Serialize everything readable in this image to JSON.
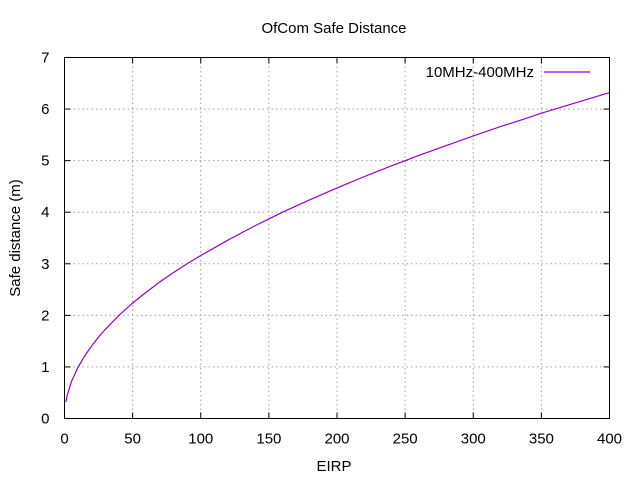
{
  "chart_data": {
    "type": "line",
    "title": "OfCom Safe Distance",
    "xlabel": "EIRP",
    "ylabel": "Safe distance (m)",
    "xlim": [
      0,
      400
    ],
    "ylim": [
      0,
      7
    ],
    "xticks": [
      0,
      50,
      100,
      150,
      200,
      250,
      300,
      350,
      400
    ],
    "yticks": [
      0,
      1,
      2,
      3,
      4,
      5,
      6,
      7
    ],
    "grid": true,
    "legend_position": "top-right",
    "series": [
      {
        "name": "10MHz-400MHz",
        "color": "#9400d3",
        "x": [
          1,
          2,
          5,
          10,
          15,
          20,
          25,
          30,
          40,
          50,
          60,
          70,
          80,
          90,
          100,
          120,
          140,
          150,
          160,
          180,
          200,
          220,
          240,
          250,
          260,
          280,
          300,
          320,
          340,
          350,
          360,
          380,
          400
        ],
        "y": [
          0.32,
          0.45,
          0.71,
          1.0,
          1.22,
          1.41,
          1.58,
          1.73,
          2.0,
          2.24,
          2.45,
          2.65,
          2.83,
          3.0,
          3.16,
          3.46,
          3.74,
          3.87,
          4.0,
          4.24,
          4.47,
          4.69,
          4.9,
          5.0,
          5.1,
          5.29,
          5.48,
          5.66,
          5.83,
          5.92,
          6.0,
          6.16,
          6.32
        ]
      }
    ]
  }
}
